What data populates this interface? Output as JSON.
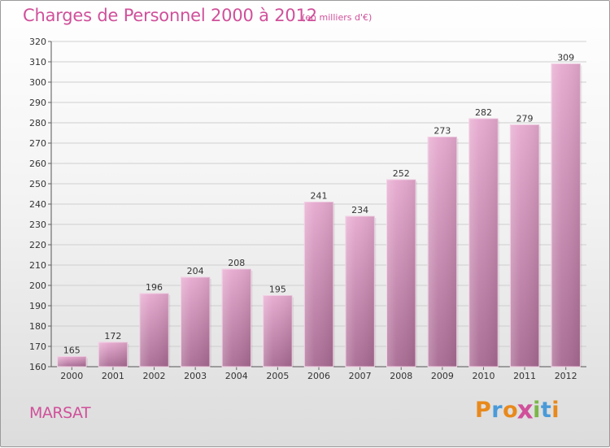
{
  "title": "Charges de Personnel 2000 à 2012",
  "subtitle": "(en milliers d'€)",
  "commune": "MARSAT",
  "logo": {
    "text": "Proxiti",
    "letters": [
      {
        "char": "P",
        "color": "#e8891c"
      },
      {
        "char": "r",
        "color": "#4a9ad8"
      },
      {
        "char": "o",
        "color": "#e8891c"
      },
      {
        "char": "x",
        "color": "#d0509a"
      },
      {
        "char": "i",
        "color": "#7ab648"
      },
      {
        "char": "t",
        "color": "#4a9ad8"
      },
      {
        "char": "i",
        "color": "#e8891c"
      }
    ]
  },
  "colors": {
    "title": "#d0509a",
    "bar_top": "#e6a9cf",
    "bar_bottom": "#a86a92",
    "grid": "#cfcfcf"
  },
  "chart_data": {
    "type": "bar",
    "title": "Charges de Personnel 2000 à 2012",
    "subtitle": "(en milliers d'€)",
    "categories": [
      "2000",
      "2001",
      "2002",
      "2003",
      "2004",
      "2005",
      "2006",
      "2007",
      "2008",
      "2009",
      "2010",
      "2011",
      "2012"
    ],
    "values": [
      165,
      172,
      196,
      204,
      208,
      195,
      241,
      234,
      252,
      273,
      282,
      279,
      309
    ],
    "ylim": [
      160,
      320
    ],
    "ytick_step": 10,
    "grid": true,
    "data_labels": true
  }
}
